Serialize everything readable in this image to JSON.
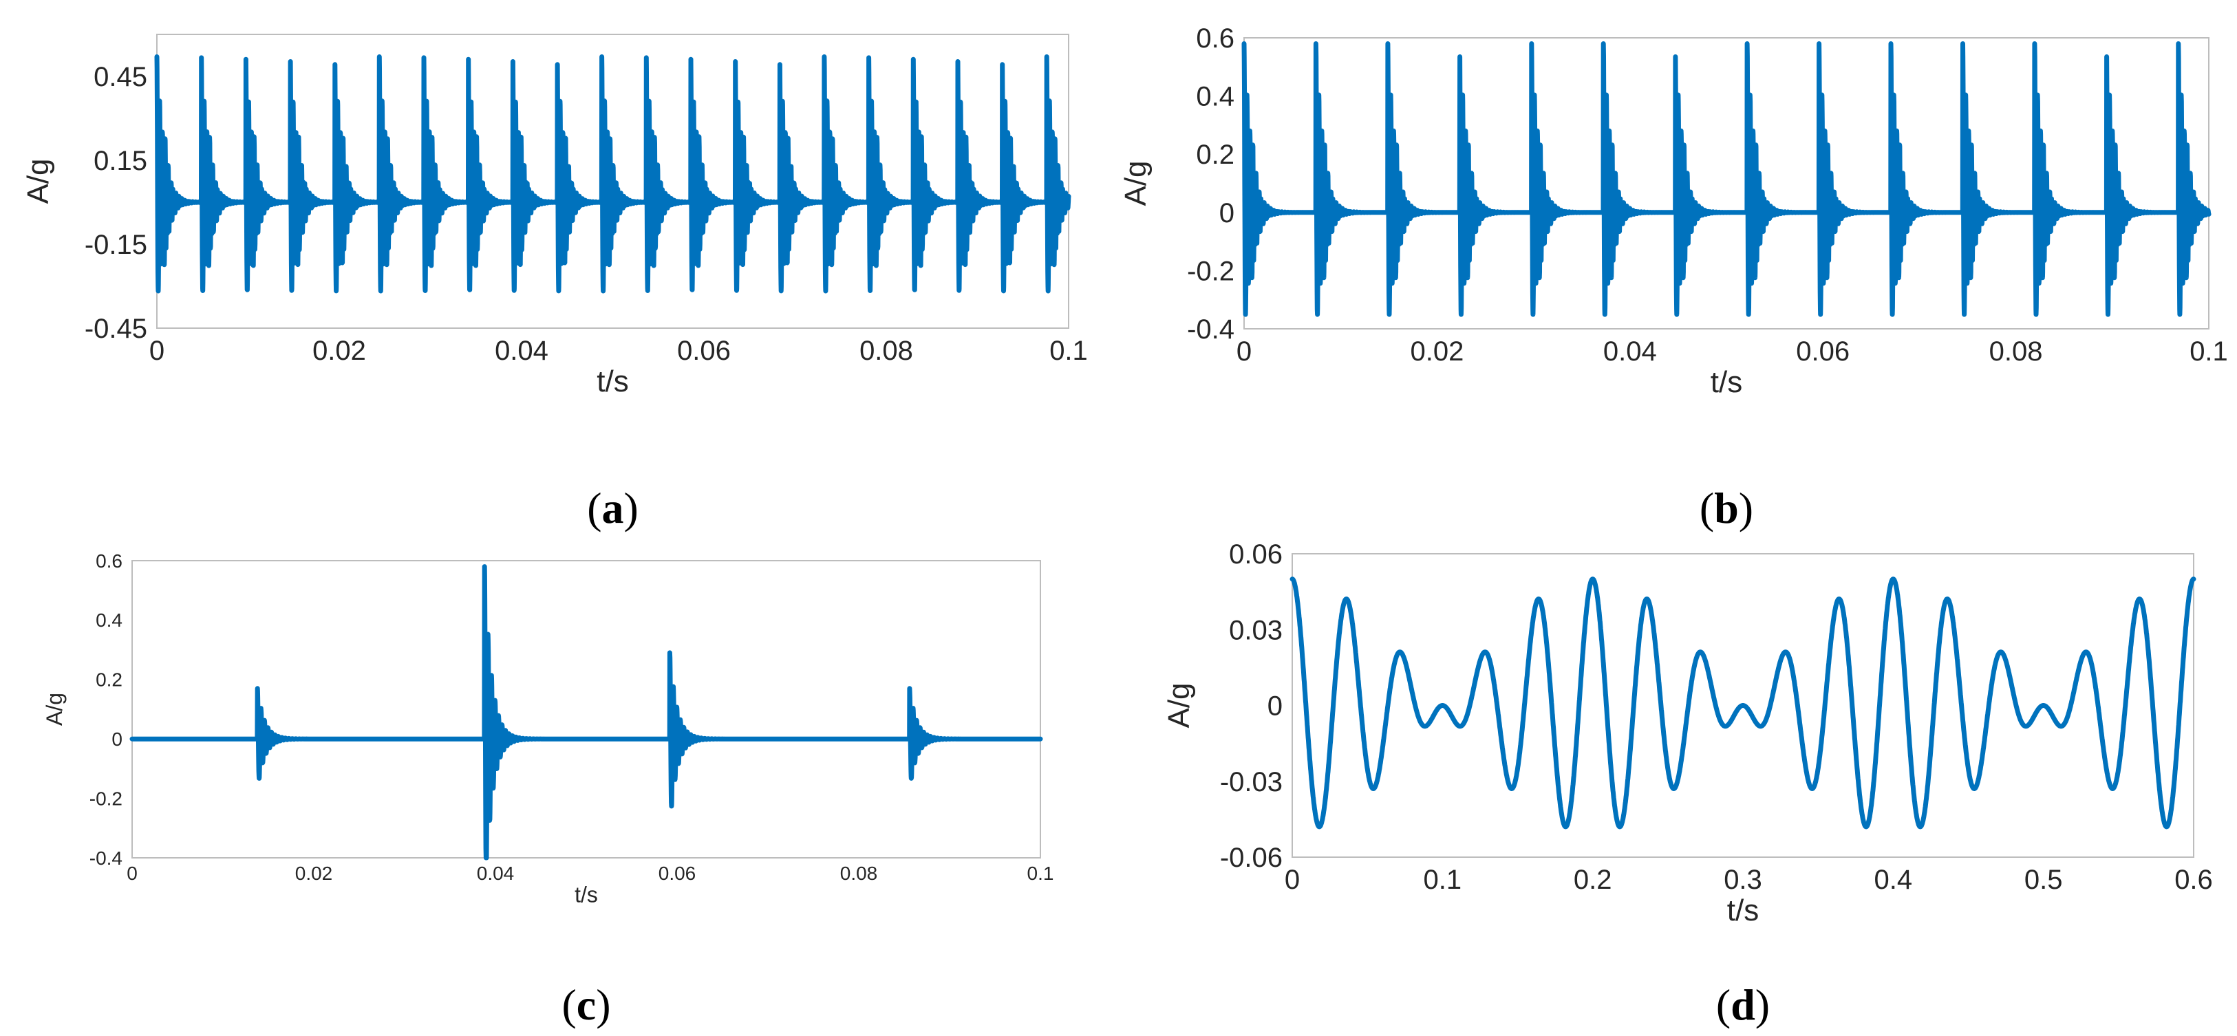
{
  "chart_data": [
    {
      "panel": "a",
      "type": "line",
      "caption_letter": "a",
      "xlabel": "t/s",
      "ylabel": "A/g",
      "xlim": [
        0,
        0.1
      ],
      "ylim": [
        -0.45,
        0.6
      ],
      "xticks": [
        "0",
        "0.02",
        "0.04",
        "0.06",
        "0.08",
        "0.1"
      ],
      "yticks": [
        "-0.45",
        "-0.15",
        "0.15",
        "0.45"
      ],
      "ytick_values": [
        -0.45,
        -0.15,
        0.15,
        0.45
      ],
      "xtick_values": [
        0,
        0.02,
        0.04,
        0.06,
        0.08,
        0.1
      ],
      "signal": {
        "kind": "impulse_train",
        "period": 0.00488,
        "first_impulse": 0.0,
        "peak_max": 0.52,
        "peak_min": -0.38,
        "secondary_peak": 0.27,
        "ring_freq_hz": 3300,
        "decay": 1200
      },
      "color": "#0072bd"
    },
    {
      "panel": "b",
      "type": "line",
      "caption_letter": "b",
      "xlabel": "t/s",
      "ylabel": "A/g",
      "xlim": [
        0,
        0.1
      ],
      "ylim": [
        -0.4,
        0.6
      ],
      "xticks": [
        "0",
        "0.02",
        "0.04",
        "0.06",
        "0.08",
        "0.1"
      ],
      "yticks": [
        "-0.4",
        "-0.2",
        "0",
        "0.2",
        "0.4",
        "0.6"
      ],
      "ytick_values": [
        -0.4,
        -0.2,
        0,
        0.2,
        0.4,
        0.6
      ],
      "xtick_values": [
        0,
        0.02,
        0.04,
        0.06,
        0.08,
        0.1
      ],
      "signal": {
        "kind": "impulse_train",
        "period": 0.00745,
        "first_impulse": 0.0,
        "peak_max": 0.58,
        "peak_min": -0.42,
        "secondary_peak": 0.27,
        "ring_freq_hz": 3300,
        "decay": 1200
      },
      "color": "#0072bd"
    },
    {
      "panel": "c",
      "type": "line",
      "caption_letter": "c",
      "xlabel": "t/s",
      "ylabel": "A/g",
      "xlim": [
        0,
        0.1
      ],
      "ylim": [
        -0.4,
        0.6
      ],
      "xticks": [
        "0",
        "0.02",
        "0.04",
        "0.06",
        "0.08",
        "0.1"
      ],
      "yticks": [
        "-0.4",
        "-0.2",
        "0",
        "0.2",
        "0.4",
        "0.6"
      ],
      "ytick_values": [
        -0.4,
        -0.2,
        0,
        0.2,
        0.4,
        0.6
      ],
      "xtick_values": [
        0,
        0.02,
        0.04,
        0.06,
        0.08,
        0.1
      ],
      "signal": {
        "kind": "impulses",
        "times": [
          0.0138,
          0.0388,
          0.0592,
          0.0856
        ],
        "amplitudes": [
          0.17,
          0.58,
          0.29,
          0.17
        ],
        "ring_freq_hz": 2600,
        "decay": 1300
      },
      "color": "#0072bd"
    },
    {
      "panel": "d",
      "type": "line",
      "caption_letter": "d",
      "xlabel": "t/s",
      "ylabel": "A/g",
      "xlim": [
        0,
        0.6
      ],
      "ylim": [
        -0.06,
        0.06
      ],
      "xticks": [
        "0",
        "0.1",
        "0.2",
        "0.3",
        "0.4",
        "0.5",
        "0.6"
      ],
      "yticks": [
        "-0.06",
        "-0.03",
        "0",
        "0.03",
        "0.06"
      ],
      "ytick_values": [
        -0.06,
        -0.03,
        0,
        0.03,
        0.06
      ],
      "xtick_values": [
        0,
        0.1,
        0.2,
        0.3,
        0.4,
        0.5,
        0.6
      ],
      "signal": {
        "kind": "beat",
        "components": [
          {
            "amplitude": 0.025,
            "freq_hz": 25
          },
          {
            "amplitude": 0.025,
            "freq_hz": 30
          }
        ]
      },
      "color": "#0072bd"
    }
  ]
}
